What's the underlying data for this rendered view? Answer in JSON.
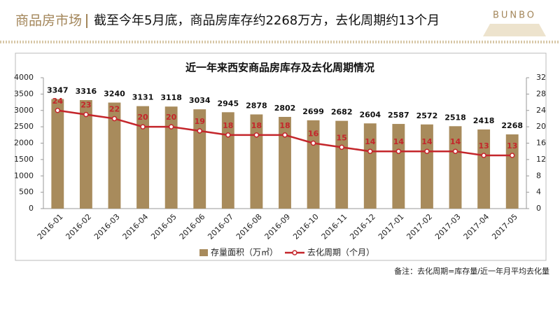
{
  "header": {
    "section": "商品房市场",
    "title": "截至今年5月底，商品房库存约2268万方，去化周期约13个月",
    "logo": "BUNBO"
  },
  "chart_data": {
    "type": "bar-line",
    "title": "近一年来西安商品房库存及去化周期情况",
    "categories": [
      "2016-01",
      "2016-02",
      "2016-03",
      "2016-04",
      "2016-05",
      "2016-06",
      "2016-07",
      "2016-08",
      "2016-09",
      "2016-10",
      "2016-11",
      "2016-12",
      "2017-01",
      "2017-02",
      "2017-03",
      "2017-04",
      "2017-05"
    ],
    "series": [
      {
        "name": "存量面积（万㎡）",
        "type": "bar",
        "color": "#a88b5c",
        "values": [
          3347,
          3316,
          3240,
          3131,
          3118,
          3034,
          2945,
          2878,
          2802,
          2699,
          2682,
          2604,
          2587,
          2572,
          2518,
          2418,
          2268
        ]
      },
      {
        "name": "去化周期（个月）",
        "type": "line",
        "axis": "y2",
        "color": "#c4262b",
        "values": [
          24,
          23,
          22,
          20,
          20,
          19,
          18,
          18,
          18,
          16,
          15,
          14,
          14,
          14,
          14,
          13,
          13
        ]
      }
    ],
    "ylim": [
      0,
      4000
    ],
    "yticks": [
      0,
      500,
      1000,
      1500,
      2000,
      2500,
      3000,
      3500,
      4000
    ],
    "y2lim": [
      0,
      32
    ],
    "y2ticks": [
      0,
      4,
      8,
      12,
      16,
      20,
      24,
      28,
      32
    ],
    "legend": "bottom",
    "note": "备注：去化周期=库存量/近一年月平均去化量"
  }
}
